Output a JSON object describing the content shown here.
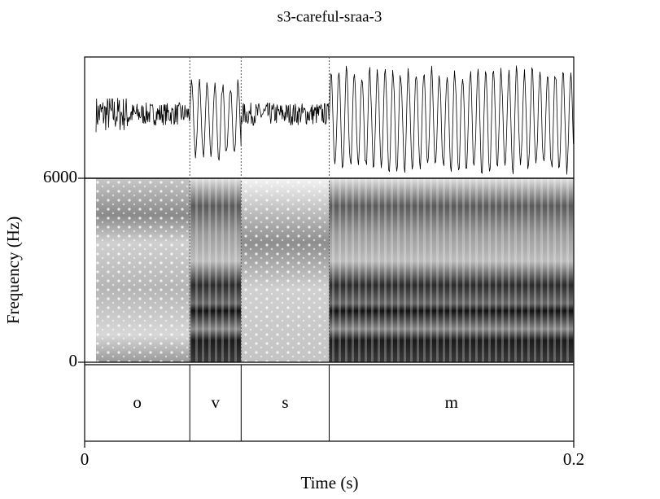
{
  "chart_data": {
    "type": "spectrogram",
    "title": "s3-careful-sraa-3",
    "xlabel": "Time (s)",
    "ylabel": "Frequency (Hz)",
    "xlim": [
      0,
      0.2
    ],
    "xticks": [
      0,
      0.2
    ],
    "ylim": [
      0,
      6000
    ],
    "yticks": [
      0,
      6000
    ],
    "intervals": [
      {
        "label": "o",
        "start": 0,
        "end": 0.043
      },
      {
        "label": "v",
        "start": 0.043,
        "end": 0.064
      },
      {
        "label": "s",
        "start": 0.064,
        "end": 0.1
      },
      {
        "label": "m",
        "start": 0.1,
        "end": 0.2
      }
    ]
  }
}
